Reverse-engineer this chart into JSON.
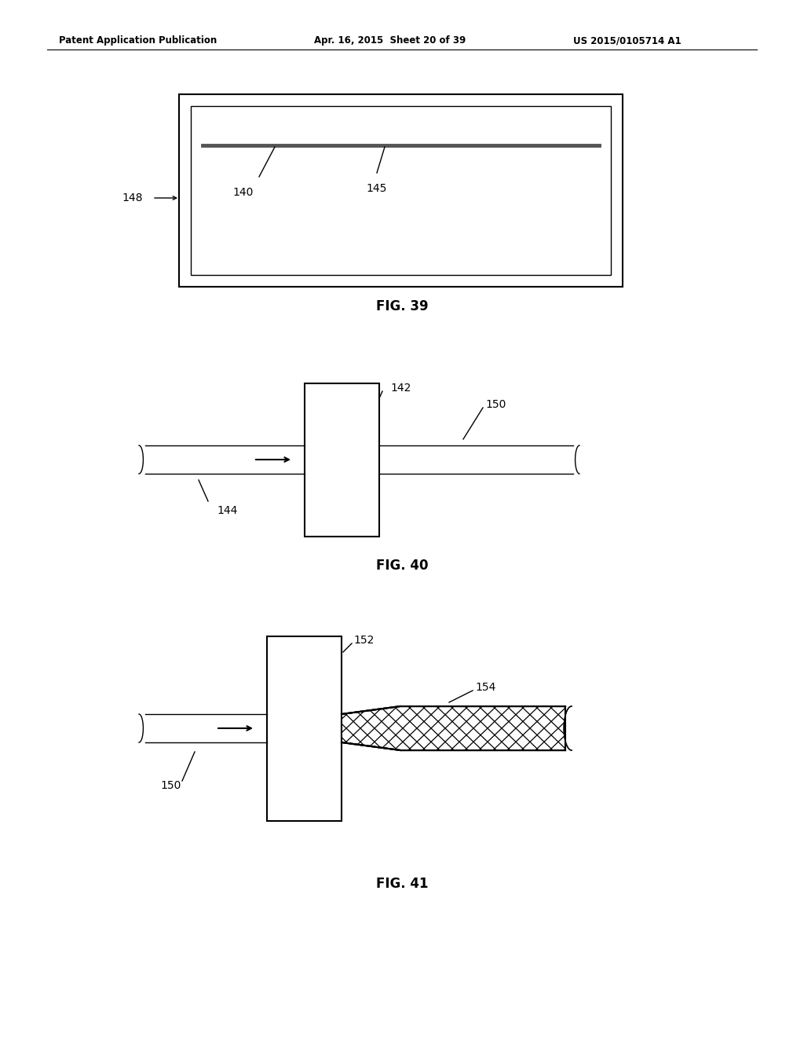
{
  "bg_color": "#ffffff",
  "header_left": "Patent Application Publication",
  "header_mid": "Apr. 16, 2015  Sheet 20 of 39",
  "header_right": "US 2015/0105714 A1",
  "fig39_label": "FIG. 39",
  "fig40_label": "FIG. 40",
  "fig41_label": "FIG. 41",
  "label_140": "140",
  "label_145": "145",
  "label_148": "148",
  "label_142": "142",
  "label_144": "144",
  "label_150_fig40": "150",
  "label_150_fig41": "150",
  "label_152": "152",
  "label_154": "154"
}
